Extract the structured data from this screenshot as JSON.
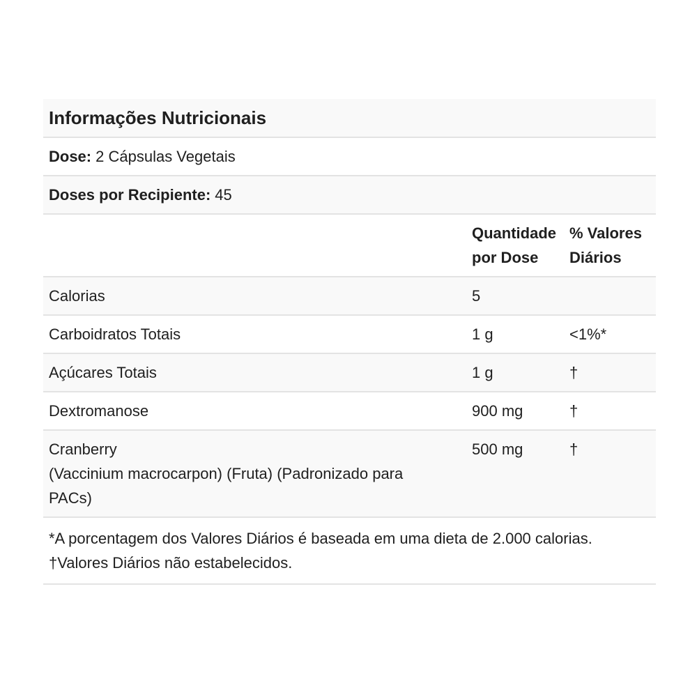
{
  "nutrition_panel": {
    "title": "Informações Nutricionais",
    "dose": {
      "label": "Dose:",
      "value": "2 Cápsulas Vegetais"
    },
    "doses_per_container": {
      "label": "Doses por Recipiente:",
      "value": "45"
    },
    "column_headers": {
      "amount": "Quantidade por Dose",
      "daily_value": "% Valores Diários"
    },
    "rows": [
      {
        "name": "Calorias",
        "amount": "5",
        "daily_value": ""
      },
      {
        "name": "Carboidratos Totais",
        "amount": "1 g",
        "daily_value": "<1%*"
      },
      {
        "name": "Açúcares Totais",
        "amount": "1 g",
        "daily_value": "†"
      },
      {
        "name": "Dextromanose",
        "amount": "900 mg",
        "daily_value": "†"
      },
      {
        "name": "Cranberry",
        "detail": "(Vaccinium macrocarpon) (Fruta) (Padronizado para PACs)",
        "amount": "500 mg",
        "daily_value": "†"
      }
    ],
    "footnotes": {
      "daily_value_note": "*A porcentagem dos Valores Diários é baseada em uma dieta de 2.000 calorias.",
      "not_established_note": "†Valores Diários não estabelecidos."
    },
    "colors": {
      "row_shade": "#f9f9f9",
      "divider": "#e3e3e3",
      "text": "#1f1f1f"
    }
  }
}
